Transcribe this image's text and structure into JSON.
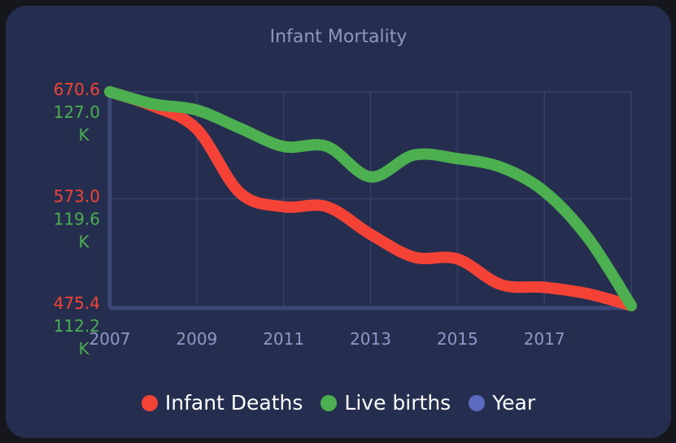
{
  "chart_data": {
    "type": "line",
    "title": "Infant Mortality",
    "x": [
      2007,
      2008,
      2009,
      2010,
      2011,
      2012,
      2013,
      2014,
      2015,
      2016,
      2017,
      2018,
      2019
    ],
    "x_ticks": [
      "2007",
      "2009",
      "2011",
      "2013",
      "2015",
      "2017"
    ],
    "xlim": [
      2007,
      2019
    ],
    "series": [
      {
        "name": "Infant Deaths",
        "color": "#f44336",
        "axis": "left-top",
        "values": [
          670.6,
          655.0,
          630.0,
          560.0,
          545.0,
          545.0,
          515.0,
          490.0,
          488.0,
          460.0,
          457.0,
          450.0,
          437.0
        ],
        "ylim": [
          437.0,
          670.6
        ],
        "tick_labels": [
          "670.6",
          "573.0",
          "475.4"
        ]
      },
      {
        "name": "Live births",
        "color": "#4caf50",
        "axis": "left-bottom",
        "values": [
          127.0,
          126.0,
          125.5,
          124.0,
          122.5,
          122.5,
          120.0,
          121.8,
          121.5,
          120.8,
          118.8,
          115.0,
          109.4
        ],
        "ylim": [
          109.4,
          127.0
        ],
        "tick_labels": [
          "127.0\nK",
          "119.6\nK",
          "112.2\nK"
        ]
      }
    ],
    "legend": [
      {
        "name": "Infant Deaths",
        "color": "#f44336"
      },
      {
        "name": "Live births",
        "color": "#4caf50"
      },
      {
        "name": "Year",
        "color": "#5c6bc0"
      }
    ],
    "legend_position": "bottom",
    "grid": true
  }
}
